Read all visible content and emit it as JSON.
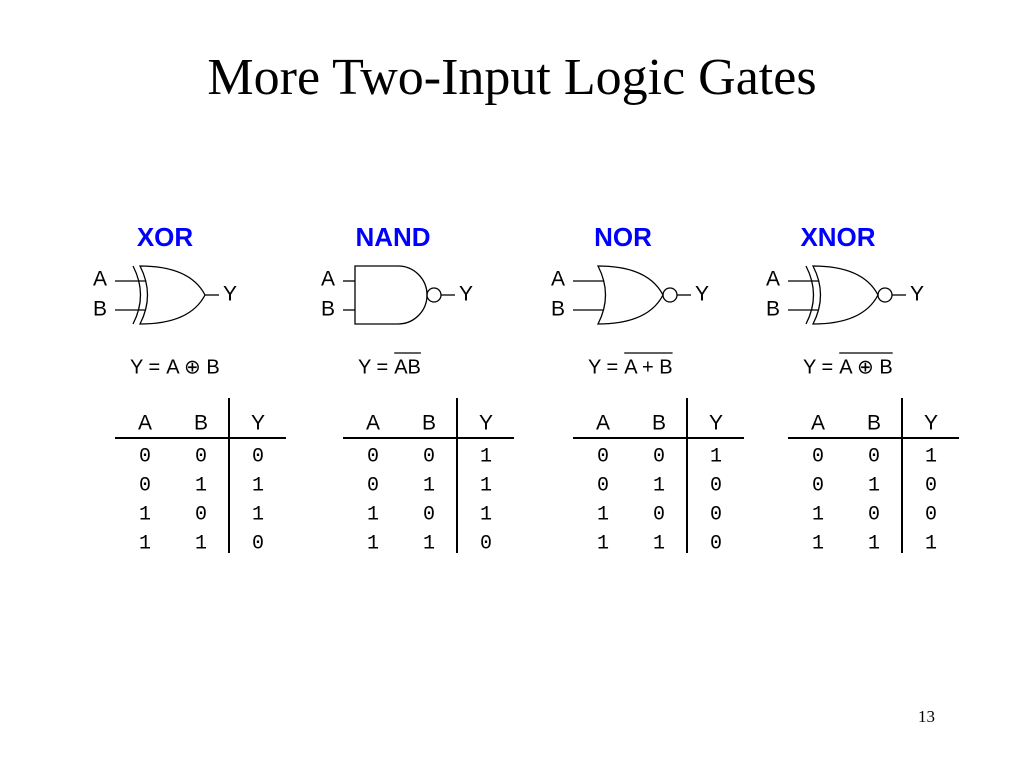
{
  "title": "More Two-Input Logic Gates",
  "gates": [
    {
      "name": "XOR",
      "input_a": "A",
      "input_b": "B",
      "output": "Y",
      "equation": {
        "lhs": "Y =",
        "rhs": "A ⊕ B"
      },
      "table": {
        "header": [
          "A",
          "B",
          "Y"
        ],
        "rows": [
          [
            0,
            0,
            0
          ],
          [
            0,
            1,
            1
          ],
          [
            1,
            0,
            1
          ],
          [
            1,
            1,
            0
          ]
        ]
      }
    },
    {
      "name": "NAND",
      "input_a": "A",
      "input_b": "B",
      "output": "Y",
      "equation": {
        "lhs": "Y =",
        "rhs": "AB"
      },
      "table": {
        "header": [
          "A",
          "B",
          "Y"
        ],
        "rows": [
          [
            0,
            0,
            1
          ],
          [
            0,
            1,
            1
          ],
          [
            1,
            0,
            1
          ],
          [
            1,
            1,
            0
          ]
        ]
      }
    },
    {
      "name": "NOR",
      "input_a": "A",
      "input_b": "B",
      "output": "Y",
      "equation": {
        "lhs": "Y =",
        "rhs": "A + B"
      },
      "table": {
        "header": [
          "A",
          "B",
          "Y"
        ],
        "rows": [
          [
            0,
            0,
            1
          ],
          [
            0,
            1,
            0
          ],
          [
            1,
            0,
            0
          ],
          [
            1,
            1,
            0
          ]
        ]
      }
    },
    {
      "name": "XNOR",
      "input_a": "A",
      "input_b": "B",
      "output": "Y",
      "equation": {
        "lhs": "Y =",
        "rhs": "A ⊕ B"
      },
      "table": {
        "header": [
          "A",
          "B",
          "Y"
        ],
        "rows": [
          [
            0,
            0,
            1
          ],
          [
            0,
            1,
            0
          ],
          [
            1,
            0,
            0
          ],
          [
            1,
            1,
            1
          ]
        ]
      }
    }
  ],
  "page_number": "13"
}
